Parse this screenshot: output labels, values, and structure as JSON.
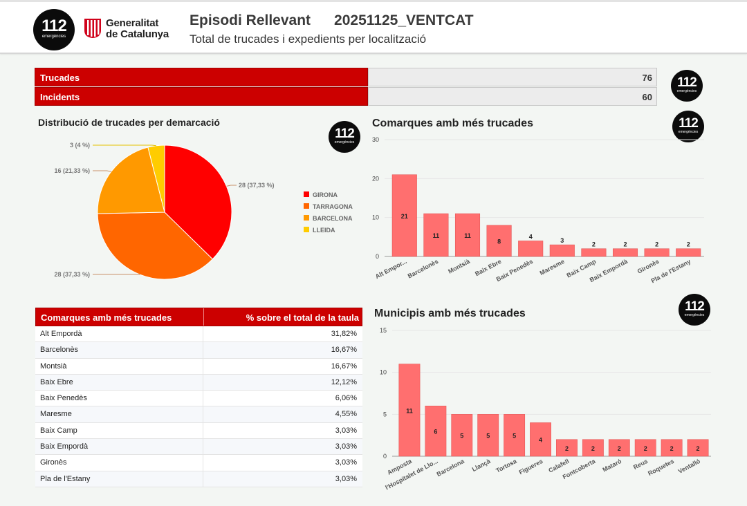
{
  "header": {
    "logo_number": "112",
    "logo_sub": "emergències",
    "gencat_line1": "Generalitat",
    "gencat_line2": "de Catalunya",
    "title": "Episodi Rellevant",
    "code": "20251125_VENTCAT",
    "subtitle": "Total de trucades i expedients per localització"
  },
  "summary": {
    "calls_label": "Trucades",
    "calls_value": "76",
    "incidents_label": "Incidents",
    "incidents_value": "60"
  },
  "colors": {
    "brand_red": "#cc0000",
    "bar": "#ff6f6f",
    "girona": "#ff0000",
    "tarragona": "#ff6600",
    "barcelona": "#ff9900",
    "lleida": "#ffcc00"
  },
  "table": {
    "col1": "Comarques amb més trucades",
    "col2": "% sobre el total de la taula",
    "rows": [
      {
        "name": "Alt Empordà",
        "pct": "31,82%"
      },
      {
        "name": "Barcelonès",
        "pct": "16,67%"
      },
      {
        "name": "Montsià",
        "pct": "16,67%"
      },
      {
        "name": "Baix Ebre",
        "pct": "12,12%"
      },
      {
        "name": "Baix Penedès",
        "pct": "6,06%"
      },
      {
        "name": "Maresme",
        "pct": "4,55%"
      },
      {
        "name": "Baix Camp",
        "pct": "3,03%"
      },
      {
        "name": "Baix Empordà",
        "pct": "3,03%"
      },
      {
        "name": "Gironès",
        "pct": "3,03%"
      },
      {
        "name": "Pla de l'Estany",
        "pct": "3,03%"
      }
    ]
  },
  "chart_data": [
    {
      "type": "pie",
      "title": "Distribució de trucades per demarcació",
      "labels": [
        "GIRONA",
        "TARRAGONA",
        "BARCELONA",
        "LLEIDA"
      ],
      "values": [
        28,
        28,
        16,
        3
      ],
      "data_labels": [
        "28 (37,33 %)",
        "28 (37,33 %)",
        "16 (21,33 %)",
        "3 (4 %)"
      ],
      "legend": "right"
    },
    {
      "type": "bar",
      "title": "Comarques amb més trucades",
      "categories": [
        "Alt Empor...",
        "Barcelonès",
        "Montsià",
        "Baix Ebre",
        "Baix Penedès",
        "Maresme",
        "Baix Camp",
        "Baix Empordà",
        "Gironès",
        "Pla de l'Estany"
      ],
      "values": [
        21,
        11,
        11,
        8,
        4,
        3,
        2,
        2,
        2,
        2
      ],
      "yticks": [
        0,
        10,
        20,
        30
      ],
      "ylim": [
        0,
        30
      ]
    },
    {
      "type": "bar",
      "title": "Municipis amb més trucades",
      "categories": [
        "Amposta",
        "l'Hospitalet de Llo...",
        "Barcelona",
        "Llançà",
        "Tortosa",
        "Figueres",
        "Calafell",
        "Fontcoberta",
        "Mataró",
        "Reus",
        "Roquetes",
        "Ventalló"
      ],
      "values": [
        11,
        6,
        5,
        5,
        5,
        4,
        2,
        2,
        2,
        2,
        2,
        2
      ],
      "yticks": [
        0,
        5,
        10,
        15
      ],
      "ylim": [
        0,
        15
      ]
    }
  ]
}
